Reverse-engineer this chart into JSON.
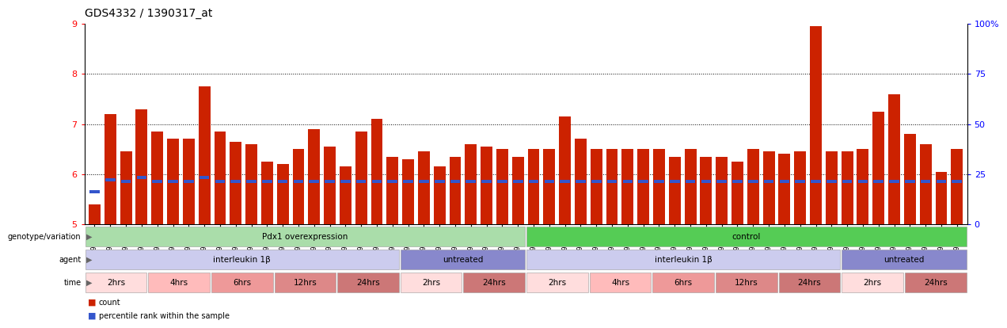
{
  "title": "GDS4332 / 1390317_at",
  "ylim_min": 5.0,
  "ylim_max": 9.0,
  "base": 5.0,
  "samples": [
    "GSM998740",
    "GSM998753",
    "GSM998766",
    "GSM998774",
    "GSM998729",
    "GSM998754",
    "GSM998767",
    "GSM998775",
    "GSM998741",
    "GSM998755",
    "GSM998768",
    "GSM998776",
    "GSM998730",
    "GSM998742",
    "GSM998747",
    "GSM998777",
    "GSM998731",
    "GSM998748",
    "GSM998756",
    "GSM998769",
    "GSM998732",
    "GSM998749",
    "GSM998757",
    "GSM998778",
    "GSM998733",
    "GSM998758",
    "GSM998770",
    "GSM998779",
    "GSM998734",
    "GSM998743",
    "GSM998759",
    "GSM998780",
    "GSM998735",
    "GSM998750",
    "GSM998760",
    "GSM998782",
    "GSM998744",
    "GSM998751",
    "GSM998761",
    "GSM998771",
    "GSM998736",
    "GSM998745",
    "GSM998762",
    "GSM998781",
    "GSM998737",
    "GSM998752",
    "GSM998763",
    "GSM998772",
    "GSM998738",
    "GSM998764",
    "GSM998773",
    "GSM998783",
    "GSM998739",
    "GSM998746",
    "GSM998765",
    "GSM998784"
  ],
  "bar_heights": [
    5.4,
    7.2,
    6.45,
    7.3,
    6.85,
    6.7,
    6.7,
    7.75,
    6.85,
    6.65,
    6.6,
    6.25,
    6.2,
    6.5,
    6.9,
    6.55,
    6.15,
    6.85,
    7.1,
    6.35,
    6.3,
    6.45,
    6.15,
    6.35,
    6.6,
    6.55,
    6.5,
    6.35,
    6.5,
    6.5,
    7.15,
    6.7,
    6.5,
    6.5,
    6.5,
    6.5,
    6.5,
    6.35,
    6.5,
    6.35,
    6.35,
    6.25,
    6.5,
    6.45,
    6.4,
    6.45,
    8.95,
    6.45,
    6.45,
    6.5,
    7.25,
    7.6,
    6.8,
    6.6,
    6.05,
    6.5
  ],
  "percentile_y": [
    5.62,
    5.85,
    5.82,
    5.9,
    5.82,
    5.82,
    5.82,
    5.9,
    5.82,
    5.82,
    5.82,
    5.82,
    5.82,
    5.82,
    5.82,
    5.82,
    5.82,
    5.82,
    5.82,
    5.82,
    5.82,
    5.82,
    5.82,
    5.82,
    5.82,
    5.82,
    5.82,
    5.82,
    5.82,
    5.82,
    5.82,
    5.82,
    5.82,
    5.82,
    5.82,
    5.82,
    5.82,
    5.82,
    5.82,
    5.82,
    5.82,
    5.82,
    5.82,
    5.82,
    5.82,
    5.82,
    5.82,
    5.82,
    5.82,
    5.82,
    5.82,
    5.82,
    5.82,
    5.82,
    5.82,
    5.82
  ],
  "bar_color": "#cc2200",
  "percentile_color": "#3355cc",
  "annotation_rows": [
    {
      "label": "genotype/variation",
      "segments": [
        {
          "text": "Pdx1 overexpression",
          "start": 0,
          "end": 28,
          "color": "#aaddaa"
        },
        {
          "text": "control",
          "start": 28,
          "end": 56,
          "color": "#55cc55"
        }
      ]
    },
    {
      "label": "agent",
      "segments": [
        {
          "text": "interleukin 1β",
          "start": 0,
          "end": 20,
          "color": "#ccccee"
        },
        {
          "text": "untreated",
          "start": 20,
          "end": 28,
          "color": "#8888cc"
        },
        {
          "text": "interleukin 1β",
          "start": 28,
          "end": 48,
          "color": "#ccccee"
        },
        {
          "text": "untreated",
          "start": 48,
          "end": 56,
          "color": "#8888cc"
        }
      ]
    },
    {
      "label": "time",
      "segments": [
        {
          "text": "2hrs",
          "start": 0,
          "end": 4,
          "color": "#ffdddd"
        },
        {
          "text": "4hrs",
          "start": 4,
          "end": 8,
          "color": "#ffbbbb"
        },
        {
          "text": "6hrs",
          "start": 8,
          "end": 12,
          "color": "#ee9999"
        },
        {
          "text": "12hrs",
          "start": 12,
          "end": 16,
          "color": "#dd8888"
        },
        {
          "text": "24hrs",
          "start": 16,
          "end": 20,
          "color": "#cc7777"
        },
        {
          "text": "2hrs",
          "start": 20,
          "end": 24,
          "color": "#ffdddd"
        },
        {
          "text": "24hrs",
          "start": 24,
          "end": 28,
          "color": "#cc7777"
        },
        {
          "text": "2hrs",
          "start": 28,
          "end": 32,
          "color": "#ffdddd"
        },
        {
          "text": "4hrs",
          "start": 32,
          "end": 36,
          "color": "#ffbbbb"
        },
        {
          "text": "6hrs",
          "start": 36,
          "end": 40,
          "color": "#ee9999"
        },
        {
          "text": "12hrs",
          "start": 40,
          "end": 44,
          "color": "#dd8888"
        },
        {
          "text": "24hrs",
          "start": 44,
          "end": 48,
          "color": "#cc7777"
        },
        {
          "text": "2hrs",
          "start": 48,
          "end": 52,
          "color": "#ffdddd"
        },
        {
          "text": "24hrs",
          "start": 52,
          "end": 56,
          "color": "#cc7777"
        }
      ]
    }
  ],
  "legend": [
    {
      "label": "count",
      "color": "#cc2200"
    },
    {
      "label": "percentile rank within the sample",
      "color": "#3355cc"
    }
  ]
}
